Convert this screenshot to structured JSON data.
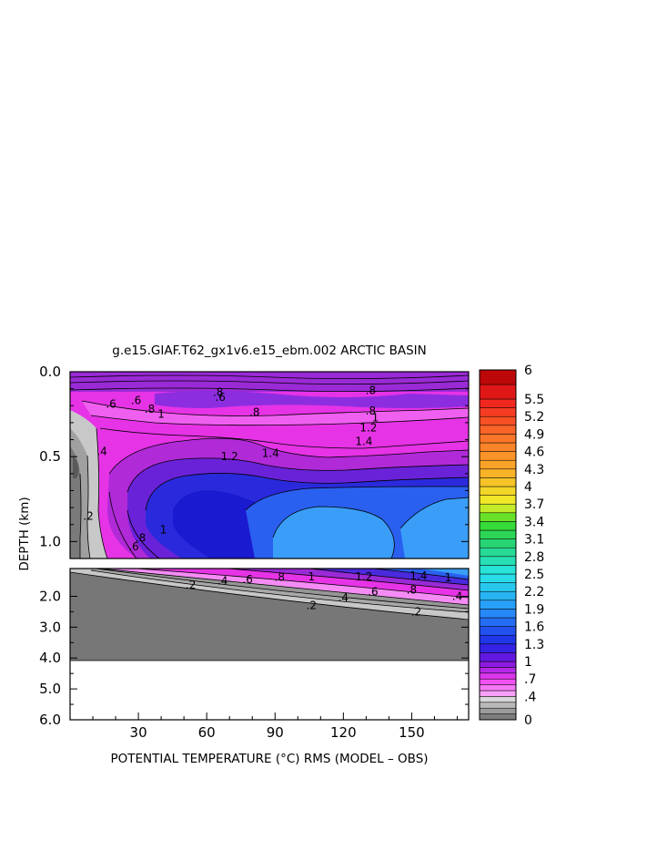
{
  "chart_data": {
    "type": "heatmap",
    "title": "g.e15.GIAF.T62_gx1v6.e15_ebm.002 ARCTIC BASIN",
    "xlabel": "POTENTIAL TEMPERATURE (°C) RMS (MODEL – OBS)",
    "ylabel": "DEPTH (km)",
    "xlim": [
      0,
      175
    ],
    "x_ticks": [
      30,
      60,
      90,
      120,
      150
    ],
    "upper_panel": {
      "ylim": [
        0,
        1.1
      ],
      "y_ticks": [
        0.0,
        0.5,
        1.0
      ],
      "y_tick_labels": [
        "0.0",
        "0.5",
        "1.0"
      ]
    },
    "lower_panel": {
      "ylim": [
        1.1,
        6.0
      ],
      "y_ticks": [
        2.0,
        3.0,
        4.0,
        5.0,
        6.0
      ],
      "y_tick_labels": [
        "2.0",
        "3.0",
        "4.0",
        "5.0",
        "6.0"
      ],
      "bottom_depth": 4.0
    },
    "colorbar": {
      "levels": [
        0,
        0.1,
        0.2,
        0.3,
        0.4,
        0.5,
        0.6,
        0.7,
        0.8,
        0.9,
        1.0,
        1.15,
        1.3,
        1.45,
        1.6,
        1.75,
        1.9,
        2.05,
        2.2,
        2.35,
        2.5,
        2.65,
        2.8,
        2.95,
        3.1,
        3.25,
        3.4,
        3.55,
        3.7,
        3.85,
        4.0,
        4.15,
        4.3,
        4.45,
        4.6,
        4.75,
        4.9,
        5.05,
        5.2,
        5.35,
        5.5,
        5.75,
        6.0
      ],
      "labels": [
        "0",
        ".4",
        ".7",
        "1",
        "1.3",
        "1.6",
        "1.9",
        "2.2",
        "2.5",
        "2.8",
        "3.1",
        "3.4",
        "3.7",
        "4",
        "4.3",
        "4.6",
        "4.9",
        "5.2",
        "5.5",
        "6"
      ],
      "label_values": [
        0,
        0.4,
        0.7,
        1.0,
        1.3,
        1.6,
        1.9,
        2.2,
        2.5,
        2.8,
        3.1,
        3.4,
        3.7,
        4.0,
        4.3,
        4.6,
        4.9,
        5.2,
        5.5,
        6.0
      ]
    },
    "contour_labels": [
      {
        "text": ".2",
        "x": 8,
        "depth": 0.85
      },
      {
        "text": ".4",
        "x": 14,
        "depth": 0.47
      },
      {
        "text": ".6",
        "x": 29,
        "depth": 0.17
      },
      {
        "text": ".6",
        "x": 66,
        "depth": 0.15
      },
      {
        "text": ".6",
        "x": 18,
        "depth": 0.19
      },
      {
        "text": ".8",
        "x": 35,
        "depth": 0.22
      },
      {
        "text": ".8",
        "x": 65,
        "depth": 0.12
      },
      {
        "text": ".8",
        "x": 81,
        "depth": 0.24
      },
      {
        "text": ".8",
        "x": 132,
        "depth": 0.11
      },
      {
        "text": ".8",
        "x": 132,
        "depth": 0.23
      },
      {
        "text": "1",
        "x": 40,
        "depth": 0.25
      },
      {
        "text": "1",
        "x": 134,
        "depth": 0.27
      },
      {
        "text": "1.2",
        "x": 70,
        "depth": 0.5
      },
      {
        "text": "1.2",
        "x": 131,
        "depth": 0.33
      },
      {
        "text": "1.4",
        "x": 129,
        "depth": 0.41
      },
      {
        "text": "1.4",
        "x": 88,
        "depth": 0.48
      },
      {
        "text": ".6",
        "x": 28,
        "depth": 1.03
      },
      {
        "text": ".8",
        "x": 31,
        "depth": 0.98
      },
      {
        "text": "1",
        "x": 41,
        "depth": 0.93
      },
      {
        "text": ".2",
        "x": 53,
        "depth": 1.63
      },
      {
        "text": ".4",
        "x": 67,
        "depth": 1.5
      },
      {
        "text": ".6",
        "x": 78,
        "depth": 1.45
      },
      {
        "text": ".8",
        "x": 92,
        "depth": 1.38
      },
      {
        "text": "1",
        "x": 106,
        "depth": 1.36
      },
      {
        "text": "1.2",
        "x": 129,
        "depth": 1.36
      },
      {
        "text": "1.4",
        "x": 153,
        "depth": 1.34
      },
      {
        "text": ".2",
        "x": 106,
        "depth": 2.3
      },
      {
        "text": ".4",
        "x": 120,
        "depth": 2.05
      },
      {
        "text": ".6",
        "x": 133,
        "depth": 1.85
      },
      {
        "text": ".8",
        "x": 150,
        "depth": 1.8
      },
      {
        "text": "1",
        "x": 166,
        "depth": 1.4
      },
      {
        "text": ".2",
        "x": 152,
        "depth": 2.5
      },
      {
        "text": ".4",
        "x": 170,
        "depth": 2.0
      }
    ]
  }
}
